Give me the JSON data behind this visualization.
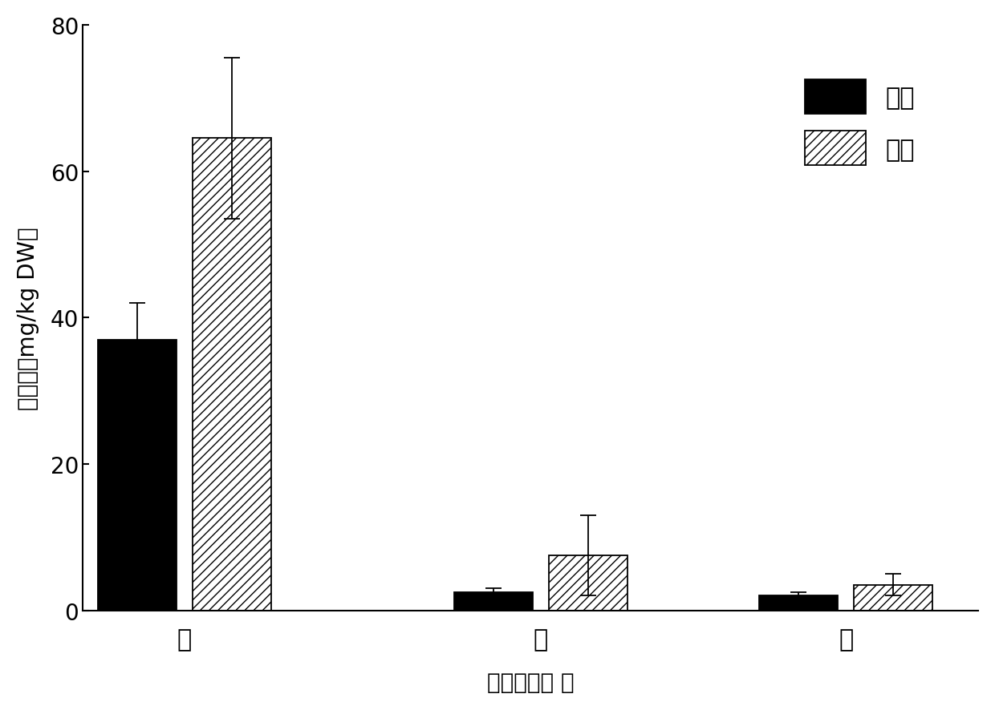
{
  "categories": [
    "根",
    "茎",
    "叶"
  ],
  "control_values": [
    37.0,
    2.5,
    2.0
  ],
  "control_errors": [
    5.0,
    0.5,
    0.5
  ],
  "treatment_values": [
    64.5,
    7.5,
    3.5
  ],
  "treatment_errors": [
    11.0,
    5.5,
    1.5
  ],
  "ylabel": "钓含量（mg/kg DW）",
  "xlabel": "植物营养器 官",
  "legend_control": "对照",
  "legend_treatment": "处理",
  "ylim": [
    0,
    80
  ],
  "yticks": [
    0,
    20,
    40,
    60,
    80
  ],
  "bar_width": 0.35,
  "control_color": "#000000",
  "treatment_color": "#ffffff",
  "treatment_hatch": "///",
  "background_color": "#ffffff",
  "edge_color": "#000000"
}
